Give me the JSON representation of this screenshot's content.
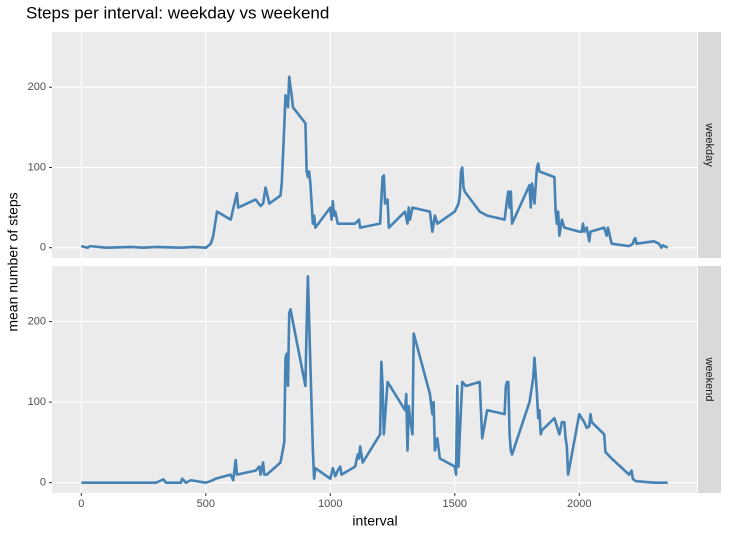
{
  "chart_data": {
    "type": "line",
    "title": "Steps per interval: weekday vs weekend",
    "x_label": "interval",
    "y_label": "mean number of steps",
    "xlim": [
      -117.75,
      2472.75
    ],
    "xticks": [
      0,
      500,
      1000,
      1500,
      2000
    ],
    "ylim": [
      -12.8,
      268.8
    ],
    "yticks": [
      0,
      100,
      200
    ],
    "grid": true,
    "facets": "rows",
    "series": [
      {
        "name": "weekday",
        "color": "#4682b4",
        "x": [
          0,
          25,
          35,
          100,
          200,
          250,
          300,
          400,
          450,
          500,
          520,
          530,
          545,
          600,
          615,
          625,
          630,
          700,
          720,
          730,
          740,
          755,
          800,
          805,
          815,
          820,
          830,
          835,
          840,
          845,
          850,
          900,
          905,
          910,
          915,
          920,
          930,
          935,
          940,
          1000,
          1005,
          1010,
          1015,
          1020,
          1030,
          1100,
          1115,
          1120,
          1200,
          1205,
          1210,
          1215,
          1220,
          1230,
          1235,
          1300,
          1310,
          1315,
          1320,
          1330,
          1400,
          1410,
          1420,
          1430,
          1500,
          1515,
          1520,
          1525,
          1530,
          1535,
          1540,
          1600,
          1630,
          1700,
          1710,
          1715,
          1720,
          1725,
          1730,
          1800,
          1805,
          1810,
          1815,
          1820,
          1830,
          1835,
          1840,
          1900,
          1905,
          1910,
          1915,
          1920,
          1930,
          1940,
          2000,
          2010,
          2015,
          2020,
          2030,
          2040,
          2045,
          2100,
          2110,
          2115,
          2130,
          2200,
          2215,
          2220,
          2225,
          2230,
          2300,
          2320,
          2330,
          2335,
          2355
        ],
        "values": [
          2,
          0,
          2,
          0,
          1,
          0,
          1,
          0,
          1,
          0,
          5,
          15,
          45,
          35,
          55,
          68,
          50,
          60,
          52,
          55,
          75,
          55,
          65,
          80,
          150,
          190,
          175,
          213,
          200,
          190,
          175,
          155,
          95,
          88,
          95,
          80,
          30,
          40,
          25,
          50,
          35,
          58,
          40,
          45,
          30,
          30,
          35,
          25,
          30,
          60,
          88,
          90,
          55,
          60,
          25,
          45,
          30,
          50,
          35,
          50,
          45,
          20,
          40,
          30,
          45,
          55,
          65,
          95,
          100,
          75,
          70,
          45,
          40,
          35,
          60,
          70,
          50,
          70,
          30,
          78,
          50,
          80,
          70,
          55,
          100,
          105,
          95,
          88,
          45,
          30,
          45,
          15,
          35,
          25,
          20,
          20,
          30,
          20,
          25,
          8,
          20,
          25,
          15,
          25,
          5,
          2,
          5,
          10,
          12,
          5,
          8,
          5,
          0,
          3,
          0
        ]
      },
      {
        "name": "weekend",
        "color": "#4682b4",
        "x": [
          0,
          100,
          200,
          300,
          330,
          340,
          400,
          405,
          420,
          440,
          500,
          520,
          540,
          600,
          610,
          620,
          625,
          700,
          715,
          720,
          730,
          735,
          745,
          800,
          815,
          820,
          825,
          830,
          835,
          840,
          900,
          905,
          910,
          915,
          930,
          935,
          940,
          1000,
          1010,
          1020,
          1030,
          1040,
          1045,
          1100,
          1110,
          1115,
          1120,
          1130,
          1200,
          1205,
          1210,
          1215,
          1230,
          1300,
          1305,
          1310,
          1315,
          1320,
          1330,
          1335,
          1400,
          1410,
          1415,
          1420,
          1430,
          1440,
          1500,
          1505,
          1510,
          1515,
          1520,
          1530,
          1545,
          1600,
          1610,
          1630,
          1700,
          1705,
          1710,
          1715,
          1720,
          1725,
          1730,
          1800,
          1815,
          1820,
          1830,
          1835,
          1840,
          1845,
          1850,
          1900,
          1920,
          1930,
          1940,
          1945,
          1950,
          1955,
          2000,
          2020,
          2030,
          2040,
          2045,
          2050,
          2100,
          2105,
          2130,
          2200,
          2210,
          2215,
          2225,
          2300,
          2340,
          2355
        ],
        "values": [
          0,
          0,
          0,
          0,
          4,
          0,
          0,
          5,
          0,
          3,
          0,
          2,
          5,
          10,
          3,
          28,
          10,
          15,
          20,
          10,
          25,
          10,
          10,
          25,
          50,
          155,
          160,
          120,
          210,
          215,
          120,
          195,
          256,
          200,
          40,
          5,
          18,
          5,
          18,
          8,
          15,
          20,
          10,
          20,
          35,
          30,
          45,
          25,
          60,
          150,
          120,
          60,
          125,
          90,
          110,
          40,
          95,
          80,
          60,
          185,
          110,
          85,
          100,
          40,
          55,
          30,
          20,
          10,
          120,
          20,
          60,
          125,
          120,
          125,
          55,
          90,
          85,
          120,
          125,
          125,
          60,
          40,
          35,
          100,
          130,
          155,
          110,
          80,
          90,
          60,
          65,
          80,
          60,
          75,
          75,
          55,
          45,
          10,
          85,
          75,
          68,
          70,
          85,
          75,
          60,
          38,
          30,
          10,
          15,
          5,
          2,
          0,
          0,
          0
        ]
      }
    ]
  }
}
